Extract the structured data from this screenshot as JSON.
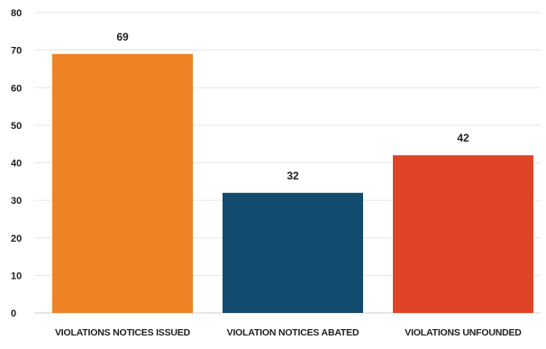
{
  "chart_data": {
    "type": "bar",
    "title": "",
    "xlabel": "",
    "ylabel": "",
    "ylim": [
      0,
      80
    ],
    "yticks": [
      0,
      10,
      20,
      30,
      40,
      50,
      60,
      70,
      80
    ],
    "grid": true,
    "categories": [
      "VIOLATIONS NOTICES ISSUED",
      "VIOLATION NOTICES ABATED",
      "VIOLATIONS UNFOUNDED"
    ],
    "values": [
      69,
      32,
      42
    ],
    "data_labels": [
      "69",
      "32",
      "42"
    ],
    "colors": [
      "#ee8325",
      "#134b6e",
      "#df4426"
    ]
  }
}
